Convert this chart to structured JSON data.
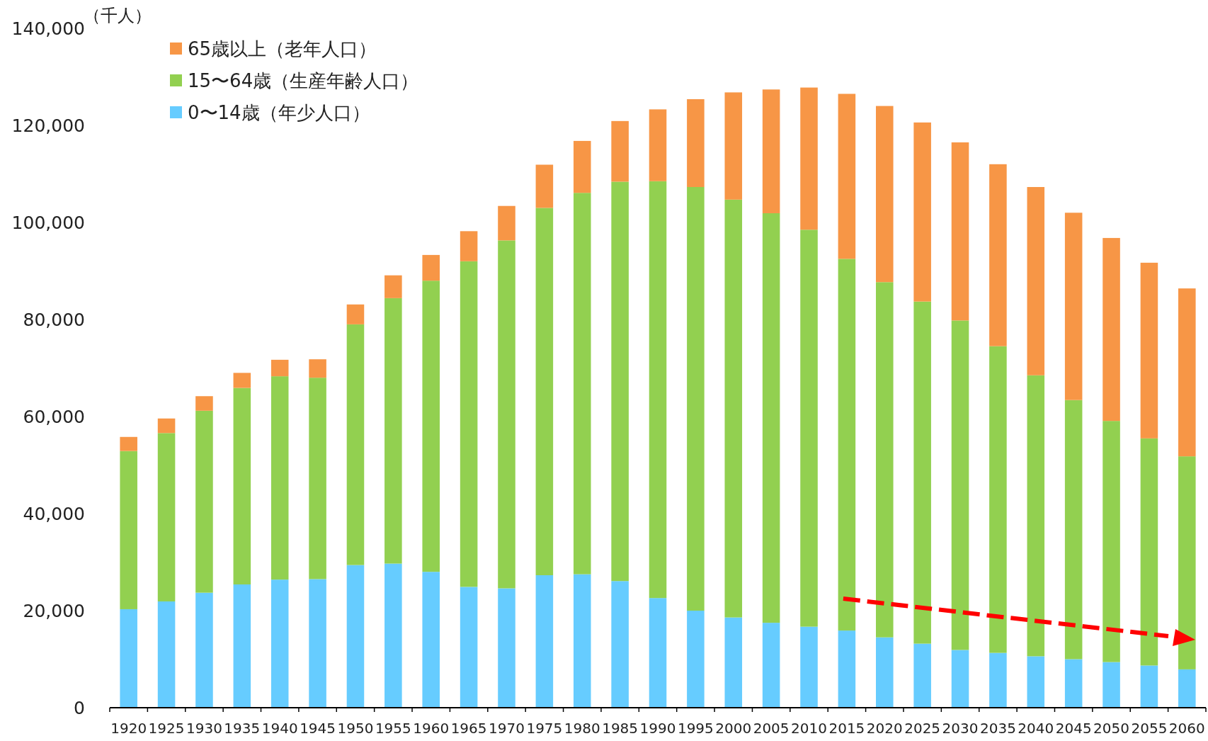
{
  "chart_data": {
    "type": "bar",
    "stacked": true,
    "ylabel": "（千人）",
    "legend": "top left",
    "categories": [
      "1920",
      "1925",
      "1930",
      "1935",
      "1940",
      "1945",
      "1950",
      "1955",
      "1960",
      "1965",
      "1970",
      "1975",
      "1980",
      "1985",
      "1990",
      "1995",
      "2000",
      "2005",
      "2010",
      "2015",
      "2020",
      "2025",
      "2030",
      "2035",
      "2040",
      "2045",
      "2050",
      "2055",
      "2060"
    ],
    "series": [
      {
        "name": "0〜14歳（年少人口）",
        "color": "#66ccff",
        "values": [
          20300,
          21900,
          23700,
          25400,
          26400,
          26500,
          29400,
          29700,
          28000,
          24900,
          24600,
          27300,
          27500,
          26100,
          22600,
          20000,
          18600,
          17500,
          16700,
          15900,
          14500,
          13200,
          11900,
          11300,
          10600,
          10000,
          9400,
          8700,
          7900
        ]
      },
      {
        "name": "15〜64歳（生産年齢人口）",
        "color": "#92d050",
        "values": [
          32600,
          34700,
          37500,
          40500,
          41900,
          41500,
          49600,
          54700,
          60000,
          67100,
          71700,
          75700,
          78600,
          82300,
          85900,
          87300,
          86100,
          84400,
          81800,
          76600,
          73200,
          70500,
          67900,
          63200,
          57900,
          53400,
          49700,
          46800,
          43900
        ]
      },
      {
        "name": "65歳以上（老年人口）",
        "color": "#f79646",
        "values": [
          2900,
          3000,
          3000,
          3100,
          3400,
          3800,
          4100,
          4700,
          5300,
          6200,
          7100,
          8900,
          10700,
          12500,
          14800,
          18100,
          22100,
          25500,
          29300,
          34000,
          36300,
          36900,
          36700,
          37500,
          38800,
          38600,
          37700,
          36200,
          34600
        ]
      }
    ],
    "ylim": [
      0,
      140000
    ],
    "yticks": [
      0,
      {
        "value": 20000,
        "label": "20,000"
      },
      {
        "value": 40000,
        "label": "40,000"
      },
      {
        "value": 60000,
        "label": "60,000"
      },
      {
        "value": 80000,
        "label": "80,000"
      },
      {
        "value": 100000,
        "label": "100,000"
      },
      {
        "value": 120000,
        "label": "120,000"
      },
      {
        "value": 140000,
        "label": "140,000"
      }
    ]
  }
}
